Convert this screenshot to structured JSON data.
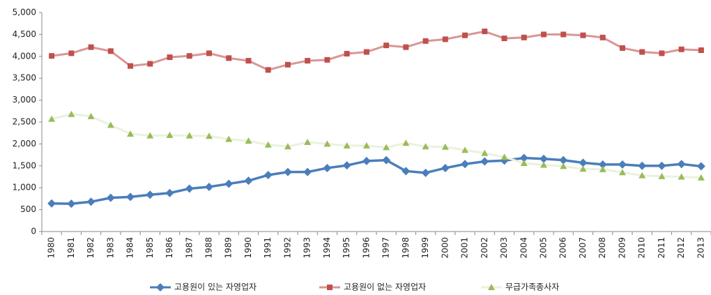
{
  "chart_data": {
    "type": "line",
    "categories": [
      "1980",
      "1981",
      "1982",
      "1983",
      "1984",
      "1985",
      "1986",
      "1987",
      "1988",
      "1989",
      "1990",
      "1991",
      "1992",
      "1993",
      "1994",
      "1995",
      "1996",
      "1997",
      "1998",
      "1999",
      "2000",
      "2001",
      "2002",
      "2003",
      "2004",
      "2005",
      "2006",
      "2007",
      "2008",
      "2009",
      "2010",
      "2011",
      "2012",
      "2013"
    ],
    "series": [
      {
        "name": "고용원이 있는 자영업자",
        "color": "#4a7ebb",
        "marker_color": "#4a7ebb",
        "marker": "diamond",
        "values": [
          640,
          635,
          680,
          770,
          790,
          840,
          880,
          980,
          1020,
          1090,
          1160,
          1290,
          1360,
          1360,
          1450,
          1510,
          1610,
          1630,
          1380,
          1340,
          1450,
          1540,
          1600,
          1620,
          1680,
          1660,
          1630,
          1570,
          1530,
          1530,
          1500,
          1500,
          1540,
          1490
        ]
      },
      {
        "name": "고용원이 없는 자영업자",
        "color": "#d99694",
        "marker_color": "#c0504d",
        "marker": "square",
        "values": [
          4010,
          4070,
          4210,
          4120,
          3780,
          3830,
          3980,
          4010,
          4070,
          3960,
          3900,
          3690,
          3810,
          3900,
          3920,
          4060,
          4100,
          4250,
          4210,
          4350,
          4390,
          4480,
          4570,
          4410,
          4430,
          4500,
          4500,
          4480,
          4430,
          4190,
          4100,
          4070,
          4160,
          4140
        ]
      },
      {
        "name": "무급가족종사자",
        "color": "#ebf1de",
        "marker_color": "#9bbb59",
        "marker": "triangle",
        "values": [
          2570,
          2680,
          2630,
          2430,
          2230,
          2190,
          2200,
          2190,
          2180,
          2110,
          2070,
          1980,
          1940,
          2040,
          2000,
          1960,
          1960,
          1920,
          2020,
          1940,
          1930,
          1860,
          1790,
          1700,
          1560,
          1520,
          1490,
          1430,
          1420,
          1350,
          1280,
          1260,
          1250,
          1230
        ]
      }
    ],
    "ylim": [
      0,
      5000
    ],
    "yticks": [
      0,
      500,
      {
        "value": 1000,
        "label": "1,000"
      },
      {
        "value": 1500,
        "label": "1,500"
      },
      {
        "value": 2000,
        "label": "2,000"
      },
      {
        "value": 2500,
        "label": "2,500"
      },
      {
        "value": 3000,
        "label": "3,000"
      },
      {
        "value": 3500,
        "label": "3,500"
      },
      {
        "value": 4000,
        "label": "4,000"
      },
      {
        "value": 4500,
        "label": "4,500"
      },
      {
        "value": 5000,
        "label": "5,000"
      }
    ],
    "grid": false
  }
}
